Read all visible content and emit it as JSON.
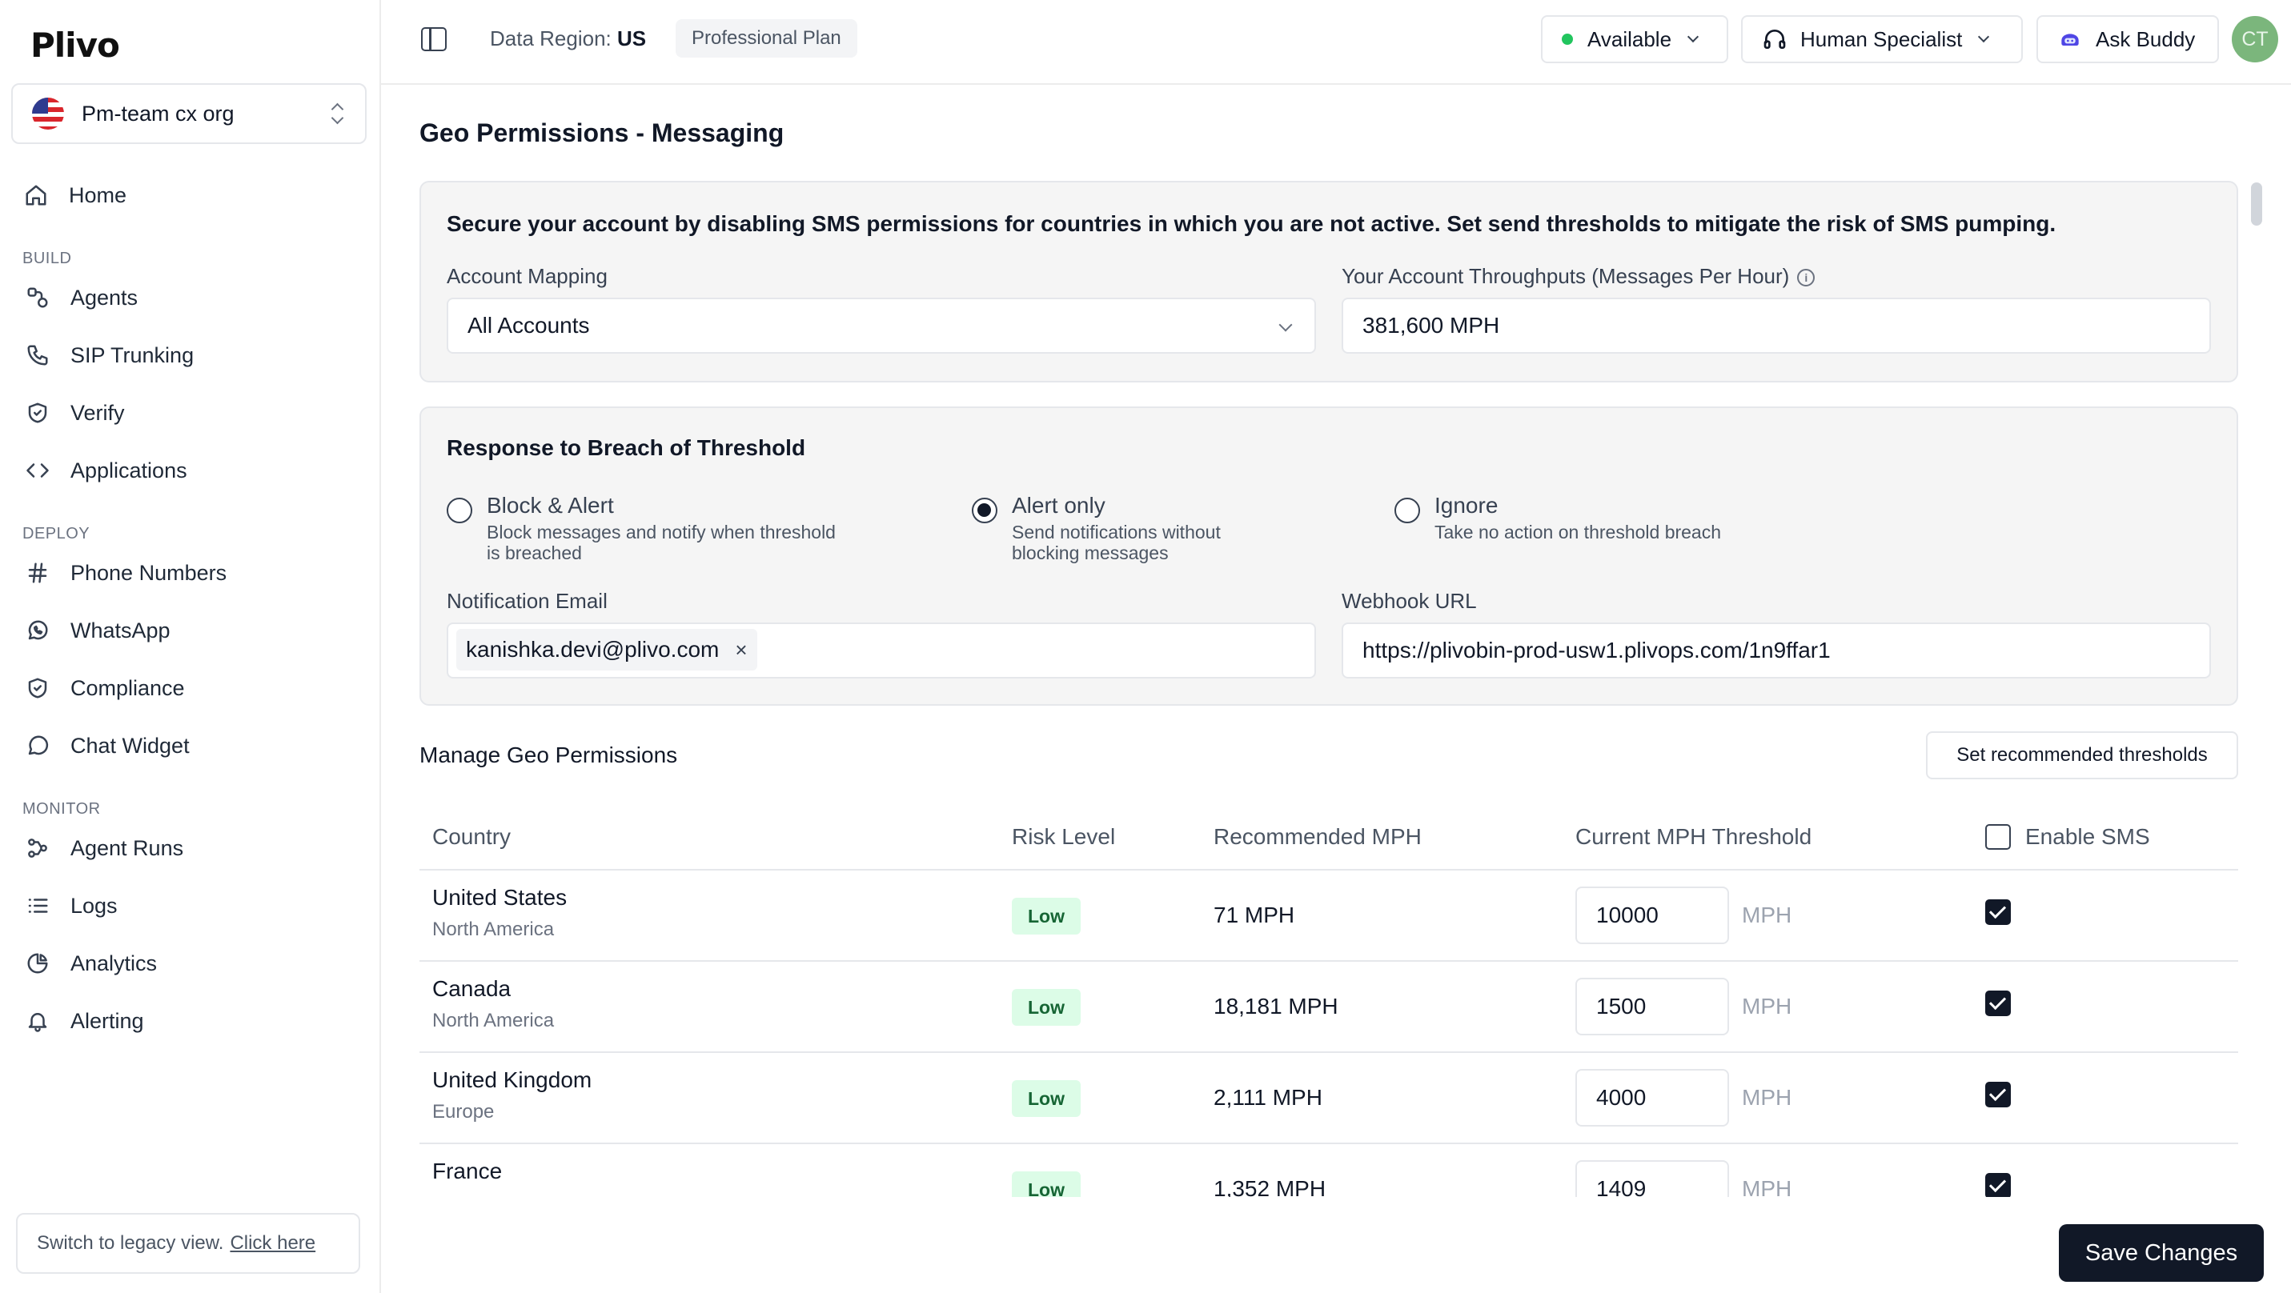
{
  "brand": {
    "logo_text": "Plivo"
  },
  "org": {
    "name": "Pm-team cx org"
  },
  "nav": {
    "home": "Home",
    "sections": [
      {
        "label": "BUILD",
        "items": [
          "Agents",
          "SIP Trunking",
          "Verify",
          "Applications"
        ]
      },
      {
        "label": "DEPLOY",
        "items": [
          "Phone Numbers",
          "WhatsApp",
          "Compliance",
          "Chat Widget"
        ]
      },
      {
        "label": "MONITOR",
        "items": [
          "Agent Runs",
          "Logs",
          "Analytics",
          "Alerting"
        ]
      }
    ],
    "legacy_text": "Switch to legacy view.",
    "legacy_link": "Click here"
  },
  "topbar": {
    "region_label": "Data Region:",
    "region_value": "US",
    "plan": "Professional Plan",
    "status": "Available",
    "specialist": "Human Specialist",
    "ask_buddy": "Ask Buddy",
    "avatar_initials": "CT"
  },
  "page": {
    "title": "Geo Permissions - Messaging"
  },
  "security_card": {
    "heading": "Secure your account by disabling SMS permissions for countries in which you are not active. Set send thresholds to mitigate the risk of SMS pumping.",
    "account_mapping_label": "Account Mapping",
    "account_mapping_value": "All Accounts",
    "throughput_label": "Your Account Throughputs (Messages Per Hour)",
    "throughput_value": "381,600 MPH"
  },
  "breach_card": {
    "heading": "Response to Breach of Threshold",
    "options": [
      {
        "title": "Block & Alert",
        "desc1": "Block messages and notify when threshold",
        "desc2": "is breached"
      },
      {
        "title": "Alert only",
        "desc1": "Send notifications without",
        "desc2": "blocking messages"
      },
      {
        "title": "Ignore",
        "desc1": "Take no action on threshold breach",
        "desc2": ""
      }
    ],
    "selected": "Alert only",
    "email_label": "Notification Email",
    "email_chip": "kanishka.devi@plivo.com",
    "chip_remove": "×",
    "webhook_label": "Webhook URL",
    "webhook_value": "https://plivobin-prod-usw1.plivops.com/1n9ffar1"
  },
  "geo": {
    "title": "Manage Geo Permissions",
    "recommend_button": "Set recommended thresholds",
    "columns": [
      "Country",
      "Risk Level",
      "Recommended MPH",
      "Current MPH Threshold",
      "Enable SMS"
    ],
    "unit": "MPH",
    "rows": [
      {
        "country": "United States",
        "region": "North America",
        "risk": "Low",
        "recommended": "71 MPH",
        "threshold": "10000",
        "enabled": true
      },
      {
        "country": "Canada",
        "region": "North America",
        "risk": "Low",
        "recommended": "18,181 MPH",
        "threshold": "1500",
        "enabled": true
      },
      {
        "country": "United Kingdom",
        "region": "Europe",
        "risk": "Low",
        "recommended": "2,111 MPH",
        "threshold": "4000",
        "enabled": true
      },
      {
        "country": "France",
        "region": "",
        "risk": "Low",
        "recommended": "1,352 MPH",
        "threshold": "1409",
        "enabled": true
      }
    ]
  },
  "actions": {
    "save": "Save Changes"
  },
  "colors": {
    "accent_dark": "#111827",
    "status_green": "#22c55e",
    "risk_low_bg": "#dcfce7",
    "risk_low_text": "#166534"
  }
}
